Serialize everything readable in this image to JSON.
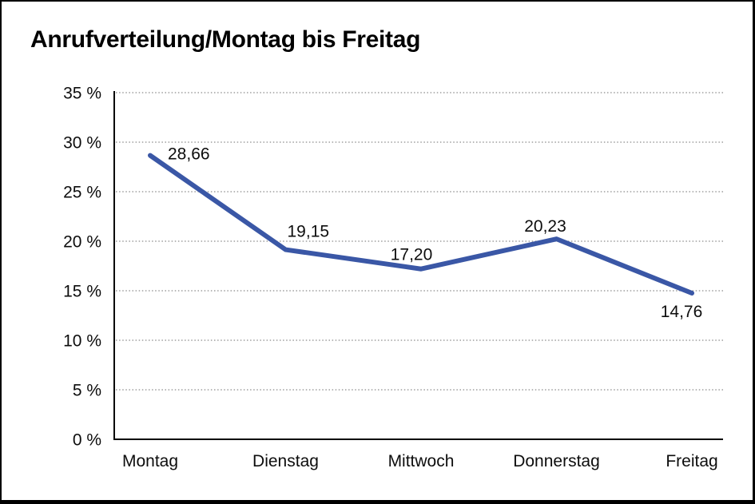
{
  "window": {
    "background": "#ffffff",
    "frame_border_color": "#000000"
  },
  "chart_data": {
    "type": "line",
    "title": "Anrufverteilung/Montag bis Freitag",
    "categories": [
      "Montag",
      "Dienstag",
      "Mittwoch",
      "Donnerstag",
      "Freitag"
    ],
    "series": [
      {
        "name": "Anrufverteilung",
        "values": [
          28.66,
          19.15,
          17.2,
          20.23,
          14.76
        ]
      }
    ],
    "data_labels": [
      "28,66",
      "19,15",
      "17,20",
      "20,23",
      "14,76"
    ],
    "y_tick_labels": [
      "0 %",
      "5 %",
      "10 %",
      "15 %",
      "20 %",
      "25 %",
      "30 %",
      "35 %"
    ],
    "ylim": [
      0,
      35
    ],
    "y_tick_step": 5,
    "xlabel": "",
    "ylabel": "",
    "grid": "horizontal-dotted",
    "legend_position": "none",
    "line_color": "#3A57A6",
    "grid_color": "#8a8a8a",
    "axis_color": "#000000",
    "label_color": "#0d0d0d"
  }
}
